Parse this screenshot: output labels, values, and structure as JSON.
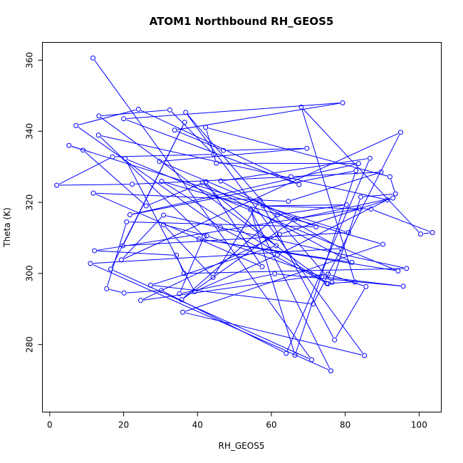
{
  "chart_data": {
    "type": "line",
    "title": "ATOM1 Northbound RH_GEOS5",
    "xlabel": "RH_GEOS5",
    "ylabel": "Theta (K)",
    "xlim": [
      -2,
      106
    ],
    "ylim": [
      261,
      365
    ],
    "x_ticks": [
      0,
      20,
      40,
      60,
      80,
      100
    ],
    "y_ticks": [
      280,
      300,
      320,
      340,
      360
    ],
    "grid": false,
    "series_color": "#0000ff",
    "series": [
      {
        "x": [
          11.7,
          70.9,
          16.5,
          36.5,
          19.8,
          80.9,
          5.2,
          9.0,
          26.1,
          42.3,
          57.5,
          11.8,
          64.6,
          89.7,
          65.3,
          22.3,
          1.9,
          17.0,
          44.4,
          32.5,
          13.3,
          75.3,
          46.2,
          7.1,
          24.0,
          67.5,
          20.0,
          79.3,
          33.8,
          47.0,
          69.6,
          29.7,
          72.1,
          20.8,
          15.4,
          20.1,
          30.2,
          64.0,
          86.7,
          46.3,
          78.9,
          11.0,
          76.1,
          54.4,
          66.4,
          82.9,
          21.7,
          83.6,
          45.1,
          42.2,
          92.1,
          93.6,
          84.2,
          76.4,
          36.8,
          85.2,
          36.0,
          90.2,
          30.3,
          75.0,
          82.6,
          68.1,
          100.4,
          103.6,
          87.0,
          57.8,
          80.3,
          61.7,
          35.7,
          66.4,
          92.9,
          62.2,
          24.6,
          75.4,
          85.6,
          77.1,
          56.9,
          44.2,
          30.8,
          42.5,
          73.7,
          95.7,
          60.9,
          35.1,
          41.8,
          13.2,
          91.4,
          61.6,
          39.2,
          20.4,
          94.3,
          40.4,
          81.8,
          41.3,
          61.3,
          27.3,
          71.3,
          95.0,
          19.4,
          30.8,
          96.6,
          36.3,
          34.3,
          12.1,
          83.9
        ],
        "y": [
          360.6,
          275.7,
          301.2,
          342.5,
          307.8,
          311.5,
          336.0,
          334.7,
          319.0,
          325.8,
          301.9,
          322.6,
          320.3,
          328.5,
          327.2,
          325.1,
          324.8,
          332.8,
          333.5,
          346.0,
          344.3,
          297.1,
          312.9,
          341.6,
          346.2,
          325.0,
          343.5,
          348.0,
          340.3,
          334.6,
          335.2,
          331.5,
          313.1,
          314.5,
          295.7,
          294.5,
          295.2,
          277.5,
          332.4,
          326.0,
          307.0,
          302.8,
          272.6,
          317.9,
          277.0,
          328.9,
          316.5,
          330.9,
          331.0,
          341.1,
          327.2,
          322.4,
          321.5,
          297.5,
          345.3,
          276.9,
          289.1,
          308.2,
          325.9,
          297.2,
          297.6,
          346.8,
          311.1,
          311.5,
          318.1,
          319.0,
          319.3,
          316.5,
          292.6,
          315.3,
          321.2,
          311.0,
          292.4,
          299.8,
          296.3,
          281.3,
          320.6,
          298.9,
          313.7,
          310.6,
          299.1,
          296.4,
          299.9,
          294.3,
          310.4,
          338.9,
          320.7,
          305.2,
          294.9,
          332.3,
          300.7,
          309.7,
          303.1,
          325.5,
          307.8,
          296.7,
          291.4,
          339.7,
          303.8,
          316.4,
          301.4,
          300.0,
          305.1,
          306.4,
          318.2
        ]
      }
    ]
  }
}
